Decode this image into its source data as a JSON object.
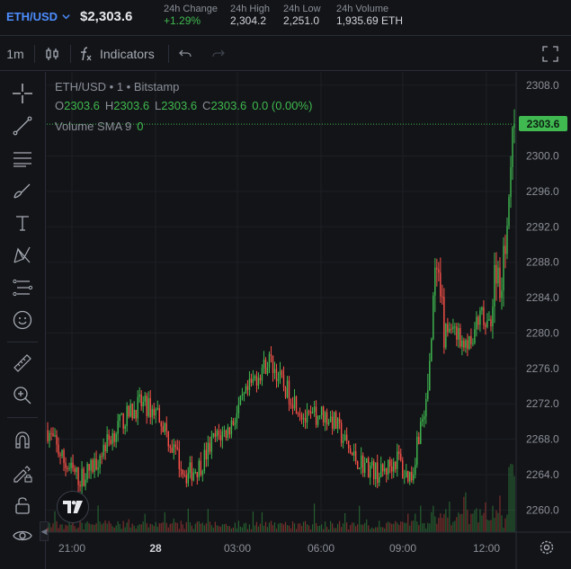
{
  "header": {
    "pair": "ETH/USD",
    "last_price": "$2,303.6",
    "stats": [
      {
        "label": "24h Change",
        "value": "+1.29%",
        "trend": "up"
      },
      {
        "label": "24h High",
        "value": "2,304.2",
        "trend": "neutral"
      },
      {
        "label": "24h Low",
        "value": "2,251.0",
        "trend": "neutral"
      },
      {
        "label": "24h Volume",
        "value": "1,935.69 ETH",
        "trend": "neutral"
      }
    ]
  },
  "toolbar": {
    "interval": "1m",
    "indicators_label": "Indicators",
    "icons": [
      "candlestick-icon",
      "function-icon",
      "undo-icon",
      "redo-icon",
      "fullscreen-icon"
    ]
  },
  "tools": [
    "crosshair-icon",
    "trend-line-icon",
    "fib-icon",
    "brush-icon",
    "text-icon",
    "pattern-icon",
    "prediction-icon",
    "emoji-icon",
    "ruler-icon",
    "zoom-in-icon",
    "magnet-icon",
    "lock-drawing-icon",
    "lock-icon",
    "eye-icon"
  ],
  "legend": {
    "symbol_line": "ETH/USD • 1 • Bitstamp",
    "ohlc": [
      {
        "key": "O",
        "value": "2303.6"
      },
      {
        "key": "H",
        "value": "2303.6"
      },
      {
        "key": "L",
        "value": "2303.6"
      },
      {
        "key": "C",
        "value": "2303.6"
      }
    ],
    "change": "0.0 (0.00%)",
    "volume_label": "Volume SMA 9",
    "volume_value": "0"
  },
  "price_tag": "2303.6",
  "colors": {
    "up": "#3fb950",
    "down": "#f85149",
    "accent": "#4c8dff",
    "background": "#131417"
  },
  "chart_data": {
    "type": "candlestick",
    "y_ticks": [
      "2308.0",
      "2300.0",
      "2296.0",
      "2292.0",
      "2288.0",
      "2284.0",
      "2280.0",
      "2276.0",
      "2272.0",
      "2268.0",
      "2264.0",
      "2260.0"
    ],
    "x_ticks": [
      "21:00",
      "28",
      "03:00",
      "06:00",
      "09:00",
      "12:00"
    ],
    "ylim": [
      2257.5,
      2309.5
    ],
    "last_price": 2303.6,
    "trend": [
      [
        0,
        2269
      ],
      [
        4,
        2265
      ],
      [
        7,
        2263.5
      ],
      [
        10,
        2265
      ],
      [
        12,
        2267
      ],
      [
        16,
        2270
      ],
      [
        20,
        2272
      ],
      [
        24,
        2271
      ],
      [
        27,
        2267
      ],
      [
        30,
        2264
      ],
      [
        33,
        2265
      ],
      [
        36,
        2268
      ],
      [
        39,
        2269
      ],
      [
        42,
        2272
      ],
      [
        45,
        2275
      ],
      [
        48,
        2277
      ],
      [
        51,
        2274
      ],
      [
        54,
        2272
      ],
      [
        56,
        2270
      ],
      [
        59,
        2271
      ],
      [
        62,
        2270
      ],
      [
        64,
        2268
      ],
      [
        66,
        2266
      ],
      [
        69,
        2265
      ],
      [
        72,
        2264
      ],
      [
        74,
        2265
      ],
      [
        76,
        2266
      ],
      [
        77,
        2264
      ],
      [
        79,
        2264
      ],
      [
        80,
        2268
      ],
      [
        82,
        2272
      ],
      [
        83,
        2279
      ],
      [
        84,
        2287
      ],
      [
        85,
        2283
      ],
      [
        86,
        2280
      ],
      [
        88,
        2281
      ],
      [
        90,
        2278
      ],
      [
        92,
        2280
      ],
      [
        94,
        2282
      ],
      [
        95,
        2280
      ],
      [
        96,
        2282
      ],
      [
        97,
        2288
      ],
      [
        98,
        2286
      ],
      [
        99,
        2290
      ],
      [
        100,
        2297
      ],
      [
        101,
        2303.6
      ]
    ],
    "volume_note": "low volume bars along the bottom, larger spikes after 09:00"
  }
}
